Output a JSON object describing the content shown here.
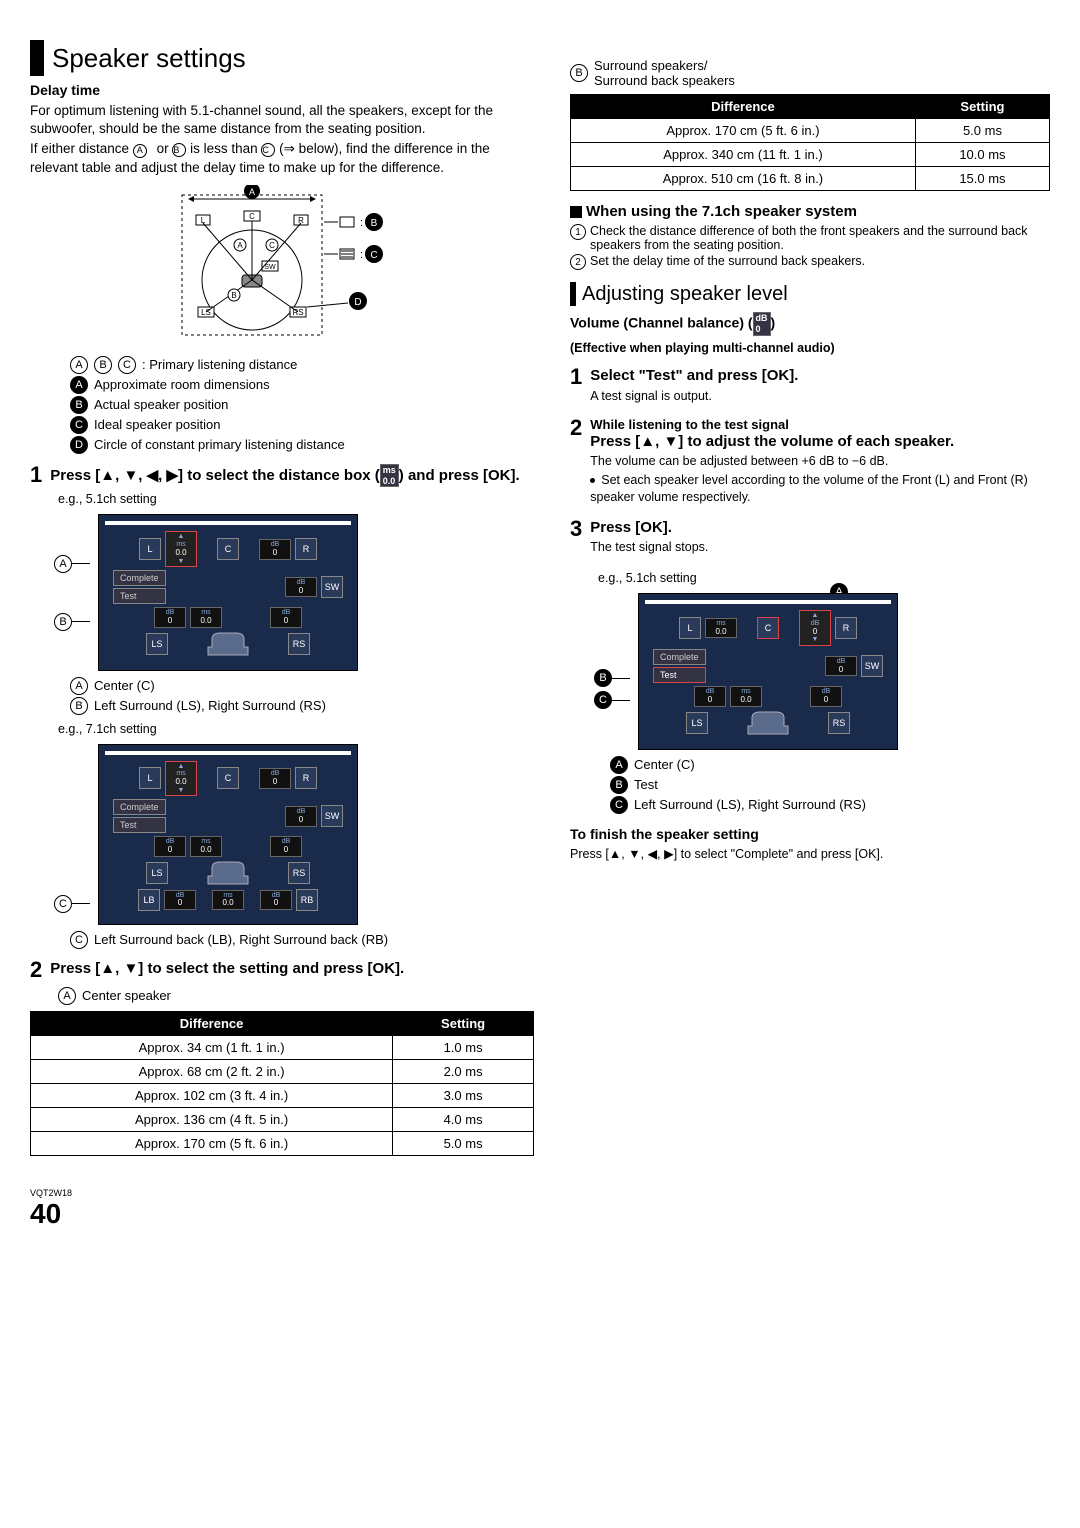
{
  "left": {
    "section_title": "Speaker settings",
    "delay_time_heading": "Delay time",
    "delay_p1": "For optimum listening with 5.1-channel sound, all the speakers, except for the subwoofer, should be the same distance from the seating position.",
    "delay_p2_a": "If either distance ",
    "delay_p2_b": " or ",
    "delay_p2_c": " is less than ",
    "delay_p2_d": " (⇒ below), find the difference in the relevant table and adjust the delay time to make up for the difference.",
    "room_legend_abc": ": Primary listening distance",
    "room_legend_A": "Approximate room dimensions",
    "room_legend_B": "Actual speaker position",
    "room_legend_C": "Ideal speaker position",
    "room_legend_D": "Circle of constant primary listening distance",
    "step1_num": "1",
    "step1_text": "Press [▲, ▼, ◀, ▶] to select the distance box (      ) and press [OK].",
    "step1_eg": "e.g., 5.1ch setting",
    "icon_ms": "ms\n0.0",
    "legend5_A_txt": "Center (C)",
    "legend5_B_txt": "Left Surround (LS), Right Surround (RS)",
    "eg71": "e.g., 7.1ch setting",
    "legend7_C_txt": "Left Surround back (LB), Right Surround back (RB)",
    "step2_num": "2",
    "step2_text": "Press [▲, ▼] to select the setting and press [OK].",
    "tableA_caption": "Center speaker",
    "tableA_h1": "Difference",
    "tableA_h2": "Setting",
    "tableA": [
      {
        "d": "Approx. 34 cm (1 ft. 1 in.)",
        "s": "1.0 ms"
      },
      {
        "d": "Approx. 68 cm (2 ft. 2 in.)",
        "s": "2.0 ms"
      },
      {
        "d": "Approx. 102 cm (3 ft. 4 in.)",
        "s": "3.0 ms"
      },
      {
        "d": "Approx. 136 cm (4 ft. 5 in.)",
        "s": "4.0 ms"
      },
      {
        "d": "Approx. 170 cm (5 ft. 6 in.)",
        "s": "5.0 ms"
      }
    ]
  },
  "right": {
    "tableB_caption": "Surround speakers/\nSurround back speakers",
    "tableB_h1": "Difference",
    "tableB_h2": "Setting",
    "tableB": [
      {
        "d": "Approx. 170 cm (5 ft. 6 in.)",
        "s": "5.0 ms"
      },
      {
        "d": "Approx. 340 cm (11 ft. 1 in.)",
        "s": "10.0 ms"
      },
      {
        "d": "Approx. 510 cm (16 ft. 8 in.)",
        "s": "15.0 ms"
      }
    ],
    "when71_heading": "When using the 7.1ch speaker system",
    "when71_1": "Check the distance difference of both the front speakers and the surround back speakers from the seating position.",
    "when71_2": "Set the delay time of the surround back speakers.",
    "adjust_title": "Adjusting speaker level",
    "volume_heading": "Volume (Channel balance) (      )",
    "volume_sub": "(Effective when playing multi-channel audio)",
    "icon_db": "dB\n0",
    "step1_num": "1",
    "step1_text": "Select \"Test\" and press [OK].",
    "step1_sub": "A test signal is output.",
    "step2_num": "2",
    "step2_pre": "While listening to the test signal",
    "step2_text": "Press [▲, ▼] to adjust the volume of each speaker.",
    "step2_p1": "The volume can be adjusted between +6 dB to −6 dB.",
    "step2_bullet": "Set each speaker level according to the volume of the Front (L) and Front (R) speaker volume respectively.",
    "step3_num": "3",
    "step3_text": "Press [OK].",
    "step3_sub": "The test signal stops.",
    "eg51": "e.g., 5.1ch setting",
    "legend_A": "Center (C)",
    "legend_B": "Test",
    "legend_C": "Left Surround (LS), Right Surround (RS)",
    "finish_heading": "To finish the speaker setting",
    "finish_text": "Press [▲, ▼, ◀, ▶] to select \"Complete\" and press [OK]."
  },
  "gui": {
    "L": "L",
    "C": "C",
    "R": "R",
    "SW": "SW",
    "LS": "LS",
    "RS": "RS",
    "LB": "LB",
    "RB": "RB",
    "complete": "Complete",
    "test": "Test",
    "ms": "ms",
    "db": "dB",
    "v00": "0.0",
    "v0": "0"
  },
  "footer": {
    "page": "40",
    "code": "VQT2W18"
  },
  "labels": {
    "A": "A",
    "B": "B",
    "C": "C",
    "D": "D",
    "circA": "Ⓐ",
    "circB": "Ⓑ",
    "circC": "Ⓒ"
  }
}
